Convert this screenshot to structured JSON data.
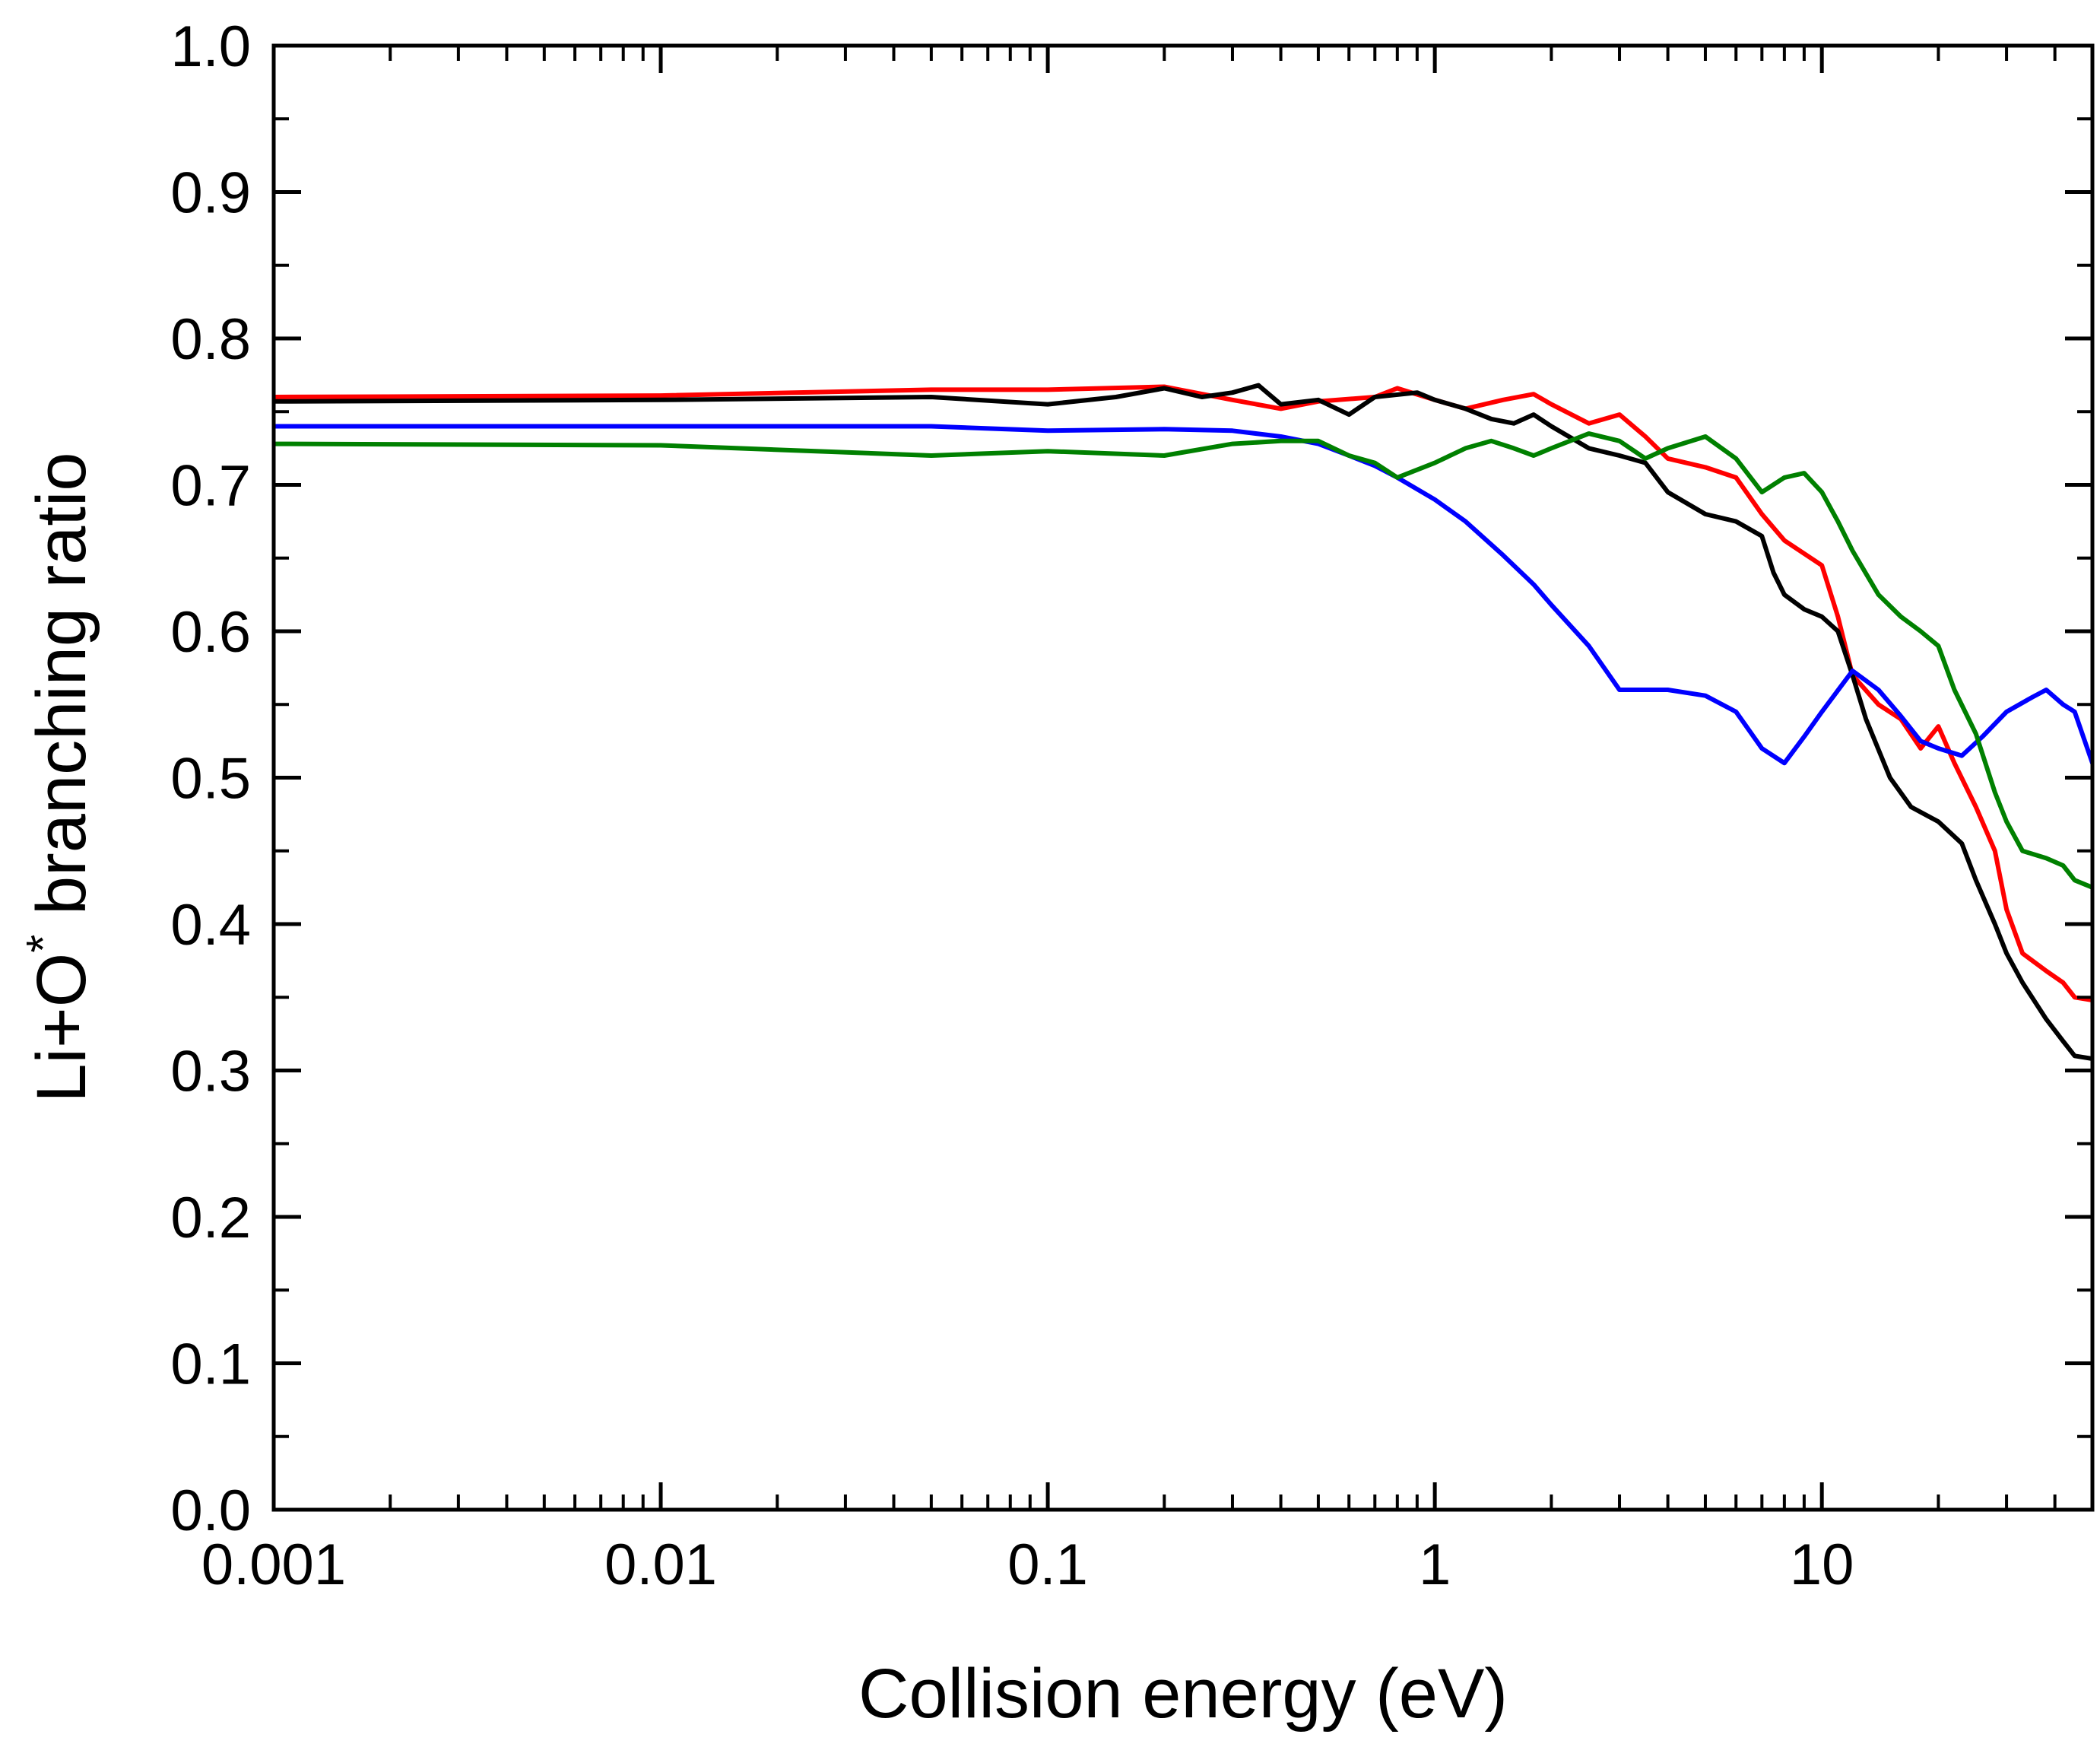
{
  "chart_data": {
    "type": "line",
    "title": "",
    "xlabel": "Collision energy (eV)",
    "ylabel_main": "Li+O",
    "ylabel_superscript": "*",
    "ylabel_rest": " branching ratio",
    "xscale": "log",
    "xlim": [
      0.001,
      50
    ],
    "ylim": [
      0.0,
      1.0
    ],
    "xticks": [
      {
        "value": 0.001,
        "label": "0.001"
      },
      {
        "value": 0.01,
        "label": "0.01"
      },
      {
        "value": 0.1,
        "label": "0.1"
      },
      {
        "value": 1,
        "label": "1"
      },
      {
        "value": 10,
        "label": "10"
      }
    ],
    "yticks": [
      {
        "value": 0.0,
        "label": "0.0"
      },
      {
        "value": 0.1,
        "label": "0.1"
      },
      {
        "value": 0.2,
        "label": "0.2"
      },
      {
        "value": 0.3,
        "label": "0.3"
      },
      {
        "value": 0.4,
        "label": "0.4"
      },
      {
        "value": 0.5,
        "label": "0.5"
      },
      {
        "value": 0.6,
        "label": "0.6"
      },
      {
        "value": 0.7,
        "label": "0.7"
      },
      {
        "value": 0.8,
        "label": "0.8"
      },
      {
        "value": 0.9,
        "label": "0.9"
      },
      {
        "value": 1.0,
        "label": "1.0"
      }
    ],
    "grid": false,
    "legend": "none",
    "series": [
      {
        "name": "red",
        "color": "#ff0000",
        "points": [
          [
            0.001,
            0.76
          ],
          [
            0.01,
            0.761
          ],
          [
            0.05,
            0.765
          ],
          [
            0.1,
            0.765
          ],
          [
            0.2,
            0.767
          ],
          [
            0.3,
            0.758
          ],
          [
            0.4,
            0.752
          ],
          [
            0.5,
            0.757
          ],
          [
            0.7,
            0.76
          ],
          [
            0.8,
            0.766
          ],
          [
            1.0,
            0.758
          ],
          [
            1.2,
            0.752
          ],
          [
            1.5,
            0.758
          ],
          [
            1.8,
            0.762
          ],
          [
            2.0,
            0.755
          ],
          [
            2.5,
            0.742
          ],
          [
            3.0,
            0.748
          ],
          [
            3.5,
            0.733
          ],
          [
            4.0,
            0.718
          ],
          [
            5.0,
            0.712
          ],
          [
            6.0,
            0.705
          ],
          [
            7.0,
            0.68
          ],
          [
            8.0,
            0.662
          ],
          [
            10.0,
            0.645
          ],
          [
            11.0,
            0.61
          ],
          [
            12.0,
            0.57
          ],
          [
            14.0,
            0.55
          ],
          [
            16.0,
            0.54
          ],
          [
            18.0,
            0.52
          ],
          [
            20.0,
            0.535
          ],
          [
            22.0,
            0.51
          ],
          [
            25.0,
            0.48
          ],
          [
            28.0,
            0.45
          ],
          [
            30.0,
            0.41
          ],
          [
            33.0,
            0.38
          ],
          [
            38.0,
            0.368
          ],
          [
            42.0,
            0.36
          ],
          [
            45.0,
            0.35
          ],
          [
            50.0,
            0.348
          ]
        ]
      },
      {
        "name": "black",
        "color": "#000000",
        "points": [
          [
            0.001,
            0.757
          ],
          [
            0.01,
            0.758
          ],
          [
            0.05,
            0.76
          ],
          [
            0.1,
            0.755
          ],
          [
            0.15,
            0.76
          ],
          [
            0.2,
            0.766
          ],
          [
            0.25,
            0.76
          ],
          [
            0.3,
            0.763
          ],
          [
            0.35,
            0.768
          ],
          [
            0.4,
            0.755
          ],
          [
            0.5,
            0.758
          ],
          [
            0.6,
            0.748
          ],
          [
            0.7,
            0.76
          ],
          [
            0.9,
            0.763
          ],
          [
            1.0,
            0.758
          ],
          [
            1.2,
            0.752
          ],
          [
            1.4,
            0.745
          ],
          [
            1.6,
            0.742
          ],
          [
            1.8,
            0.748
          ],
          [
            2.0,
            0.74
          ],
          [
            2.5,
            0.725
          ],
          [
            3.0,
            0.72
          ],
          [
            3.5,
            0.715
          ],
          [
            4.0,
            0.695
          ],
          [
            5.0,
            0.68
          ],
          [
            6.0,
            0.675
          ],
          [
            7.0,
            0.665
          ],
          [
            7.5,
            0.64
          ],
          [
            8.0,
            0.625
          ],
          [
            9.0,
            0.615
          ],
          [
            10.0,
            0.61
          ],
          [
            11.0,
            0.6
          ],
          [
            12.0,
            0.57
          ],
          [
            13.0,
            0.54
          ],
          [
            15.0,
            0.5
          ],
          [
            17.0,
            0.48
          ],
          [
            20.0,
            0.47
          ],
          [
            23.0,
            0.455
          ],
          [
            25.0,
            0.43
          ],
          [
            28.0,
            0.4
          ],
          [
            30.0,
            0.38
          ],
          [
            33.0,
            0.36
          ],
          [
            38.0,
            0.335
          ],
          [
            42.0,
            0.32
          ],
          [
            45.0,
            0.31
          ],
          [
            50.0,
            0.308
          ]
        ]
      },
      {
        "name": "blue",
        "color": "#0000ff",
        "points": [
          [
            0.001,
            0.74
          ],
          [
            0.01,
            0.74
          ],
          [
            0.05,
            0.74
          ],
          [
            0.1,
            0.737
          ],
          [
            0.2,
            0.738
          ],
          [
            0.3,
            0.737
          ],
          [
            0.4,
            0.733
          ],
          [
            0.5,
            0.728
          ],
          [
            0.6,
            0.72
          ],
          [
            0.7,
            0.713
          ],
          [
            0.8,
            0.705
          ],
          [
            1.0,
            0.69
          ],
          [
            1.2,
            0.675
          ],
          [
            1.5,
            0.652
          ],
          [
            1.8,
            0.632
          ],
          [
            2.0,
            0.618
          ],
          [
            2.5,
            0.59
          ],
          [
            3.0,
            0.56
          ],
          [
            4.0,
            0.56
          ],
          [
            5.0,
            0.556
          ],
          [
            6.0,
            0.545
          ],
          [
            7.0,
            0.52
          ],
          [
            8.0,
            0.51
          ],
          [
            9.0,
            0.528
          ],
          [
            10.0,
            0.545
          ],
          [
            12.0,
            0.573
          ],
          [
            14.0,
            0.56
          ],
          [
            16.0,
            0.542
          ],
          [
            18.0,
            0.525
          ],
          [
            20.0,
            0.52
          ],
          [
            23.0,
            0.515
          ],
          [
            26.0,
            0.528
          ],
          [
            30.0,
            0.545
          ],
          [
            35.0,
            0.555
          ],
          [
            38.0,
            0.56
          ],
          [
            42.0,
            0.55
          ],
          [
            45.0,
            0.545
          ],
          [
            50.0,
            0.51
          ]
        ]
      },
      {
        "name": "green",
        "color": "#008000",
        "points": [
          [
            0.001,
            0.728
          ],
          [
            0.01,
            0.727
          ],
          [
            0.05,
            0.72
          ],
          [
            0.1,
            0.723
          ],
          [
            0.2,
            0.72
          ],
          [
            0.3,
            0.728
          ],
          [
            0.4,
            0.73
          ],
          [
            0.5,
            0.73
          ],
          [
            0.6,
            0.72
          ],
          [
            0.7,
            0.715
          ],
          [
            0.8,
            0.705
          ],
          [
            1.0,
            0.715
          ],
          [
            1.2,
            0.725
          ],
          [
            1.4,
            0.73
          ],
          [
            1.6,
            0.725
          ],
          [
            1.8,
            0.72
          ],
          [
            2.0,
            0.725
          ],
          [
            2.5,
            0.735
          ],
          [
            3.0,
            0.73
          ],
          [
            3.5,
            0.718
          ],
          [
            4.0,
            0.725
          ],
          [
            5.0,
            0.733
          ],
          [
            6.0,
            0.718
          ],
          [
            7.0,
            0.695
          ],
          [
            8.0,
            0.705
          ],
          [
            9.0,
            0.708
          ],
          [
            10.0,
            0.695
          ],
          [
            11.0,
            0.675
          ],
          [
            12.0,
            0.655
          ],
          [
            14.0,
            0.625
          ],
          [
            16.0,
            0.61
          ],
          [
            18.0,
            0.6
          ],
          [
            20.0,
            0.59
          ],
          [
            22.0,
            0.56
          ],
          [
            25.0,
            0.53
          ],
          [
            28.0,
            0.49
          ],
          [
            30.0,
            0.47
          ],
          [
            33.0,
            0.45
          ],
          [
            38.0,
            0.445
          ],
          [
            42.0,
            0.44
          ],
          [
            45.0,
            0.43
          ],
          [
            50.0,
            0.425
          ]
        ]
      }
    ]
  }
}
